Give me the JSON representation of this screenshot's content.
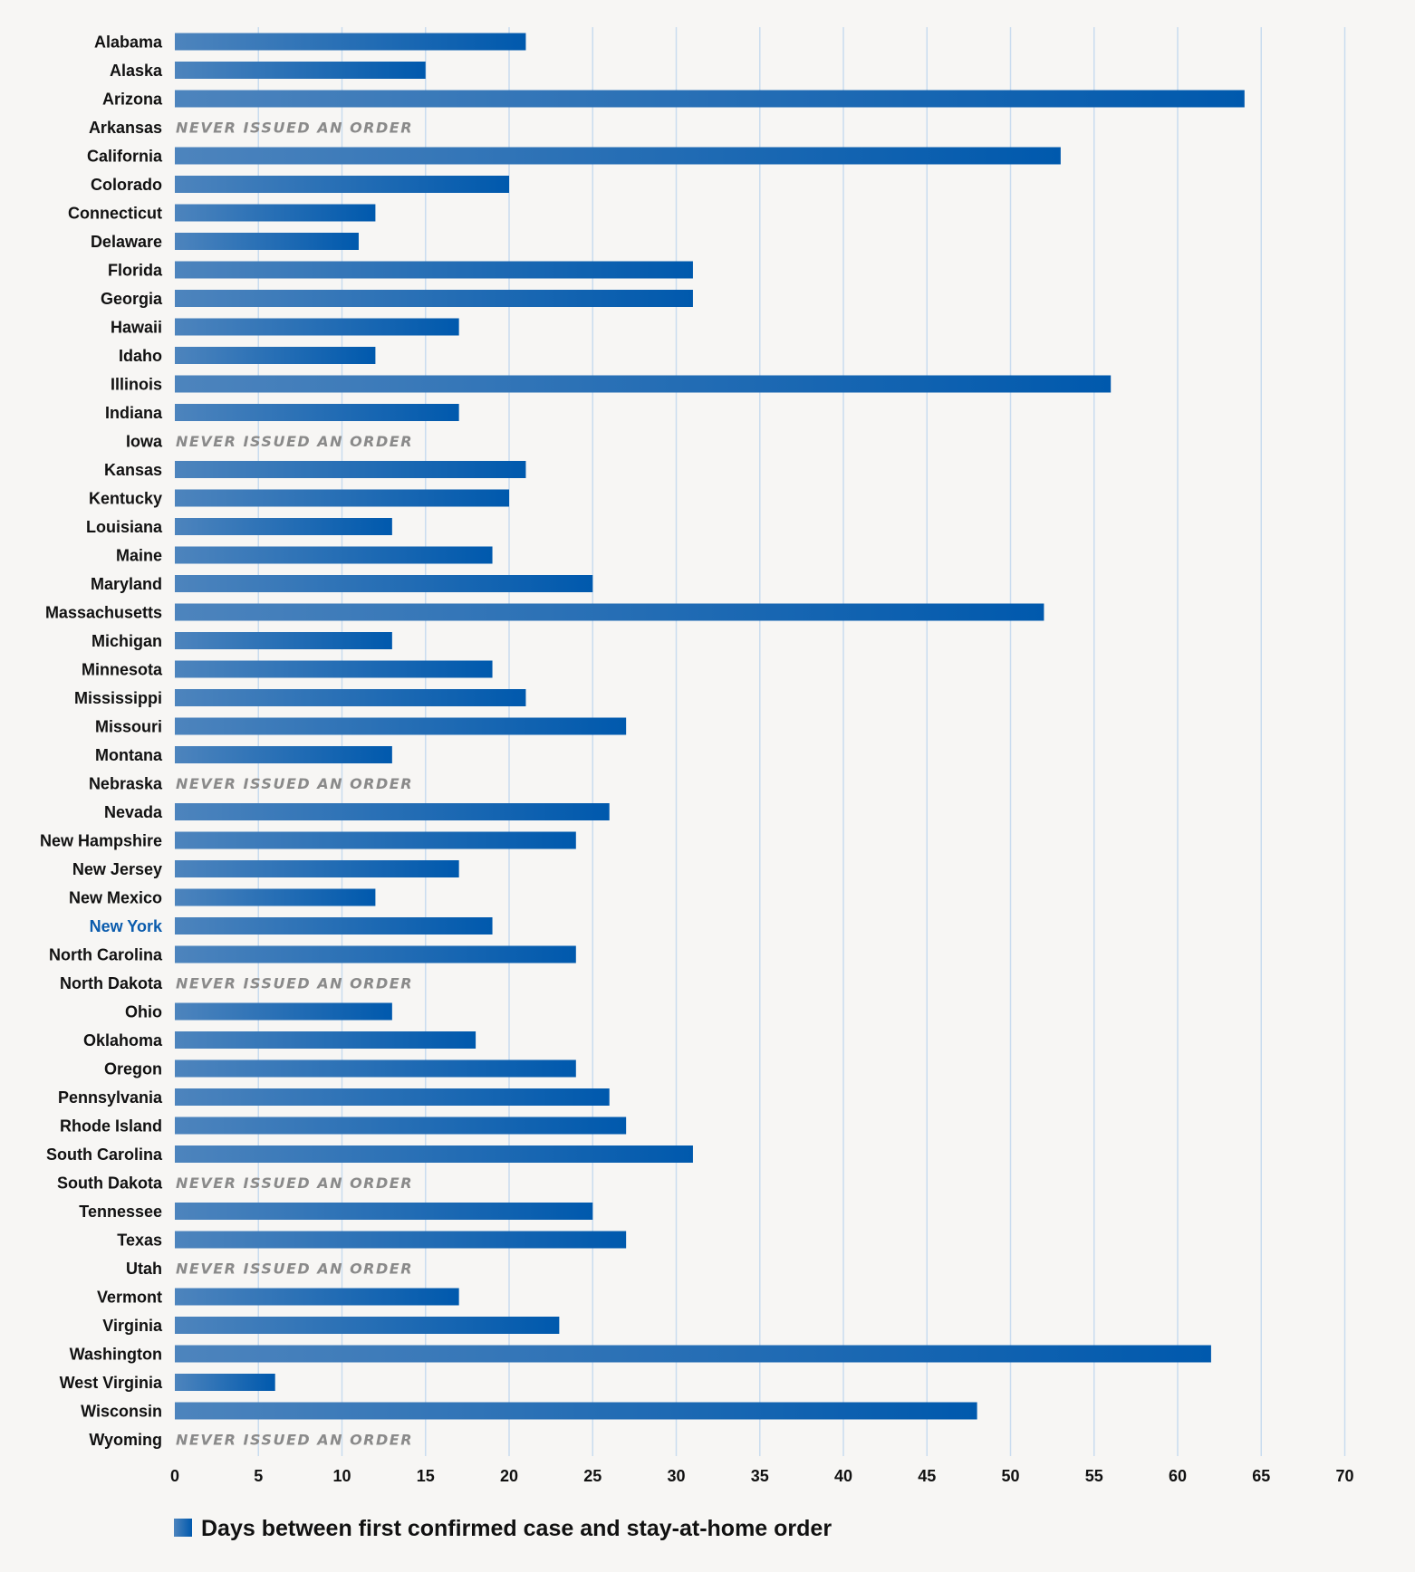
{
  "chart_data": {
    "type": "bar",
    "orientation": "horizontal",
    "categories": [
      "Alabama",
      "Alaska",
      "Arizona",
      "Arkansas",
      "California",
      "Colorado",
      "Connecticut",
      "Delaware",
      "Florida",
      "Georgia",
      "Hawaii",
      "Idaho",
      "Illinois",
      "Indiana",
      "Iowa",
      "Kansas",
      "Kentucky",
      "Louisiana",
      "Maine",
      "Maryland",
      "Massachusetts",
      "Michigan",
      "Minnesota",
      "Mississippi",
      "Missouri",
      "Montana",
      "Nebraska",
      "Nevada",
      "New Hampshire",
      "New Jersey",
      "New Mexico",
      "New York",
      "North Carolina",
      "North Dakota",
      "Ohio",
      "Oklahoma",
      "Oregon",
      "Pennsylvania",
      "Rhode Island",
      "South Carolina",
      "South Dakota",
      "Tennessee",
      "Texas",
      "Utah",
      "Vermont",
      "Virginia",
      "Washington",
      "West Virginia",
      "Wisconsin",
      "Wyoming"
    ],
    "series": [
      {
        "name": "Days between first confirmed case and stay-at-home order",
        "values": [
          21,
          15,
          64,
          null,
          53,
          20,
          12,
          11,
          31,
          31,
          17,
          12,
          56,
          17,
          null,
          21,
          20,
          13,
          19,
          25,
          52,
          13,
          19,
          21,
          27,
          13,
          null,
          26,
          24,
          17,
          12,
          19,
          24,
          null,
          13,
          18,
          24,
          26,
          27,
          31,
          null,
          25,
          27,
          null,
          17,
          23,
          62,
          6,
          48,
          null
        ]
      }
    ],
    "missing_label": "NEVER ISSUED AN ORDER",
    "highlighted_category": "New York",
    "xlim": [
      0,
      70
    ],
    "xticks": [
      0,
      5,
      10,
      15,
      20,
      25,
      30,
      35,
      40,
      45,
      50,
      55,
      60,
      65,
      70
    ],
    "grid": "vertical",
    "legend_position": "bottom-left",
    "colors": {
      "bar_start": "#4d84bd",
      "bar_end": "#0059ad",
      "highlight_label": "#0b5cad",
      "grid": "#c9dcef",
      "missing_text": "#8a8a8a",
      "background": "#f7f6f4"
    }
  }
}
